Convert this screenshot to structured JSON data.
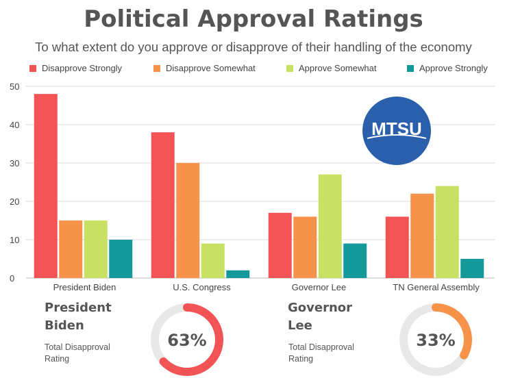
{
  "title": "Political Approval Ratings",
  "subtitle": "To what extent do you approve or disapprove of their handling of the economy",
  "logo_text": "MTSU",
  "colors": {
    "disapprove_strongly": "#f25456",
    "disapprove_somewhat": "#f7924a",
    "approve_somewhat": "#c8e063",
    "approve_strongly": "#14999b",
    "logo_blue": "#2a5fab",
    "grid": "#dddddd",
    "donut_track": "#e8e8e8"
  },
  "chart_data": {
    "type": "bar",
    "title": "Political Approval Ratings",
    "categories": [
      "President Biden",
      "U.S. Congress",
      "Governor Lee",
      "TN General Assembly"
    ],
    "series": [
      {
        "name": "Disapprove Strongly",
        "values": [
          48,
          38,
          17,
          16
        ]
      },
      {
        "name": "Disapprove Somewhat",
        "values": [
          15,
          30,
          16,
          22
        ]
      },
      {
        "name": "Approve Somewhat",
        "values": [
          15,
          9,
          27,
          24
        ]
      },
      {
        "name": "Approve Strongly",
        "values": [
          10,
          2,
          9,
          5
        ]
      }
    ],
    "yticks": [
      0,
      10,
      20,
      30,
      40,
      50
    ],
    "ylim": [
      0,
      50
    ],
    "xlabel": "",
    "ylabel": "",
    "grid": true,
    "legend": "top"
  },
  "summaries": [
    {
      "name": "President Biden",
      "caption": "Total Disapproval Rating",
      "value": 63,
      "label": "63%",
      "color": "#f25456"
    },
    {
      "name": "Governor Lee",
      "caption": "Total Disapproval Rating",
      "value": 33,
      "label": "33%",
      "color": "#f7924a"
    }
  ]
}
